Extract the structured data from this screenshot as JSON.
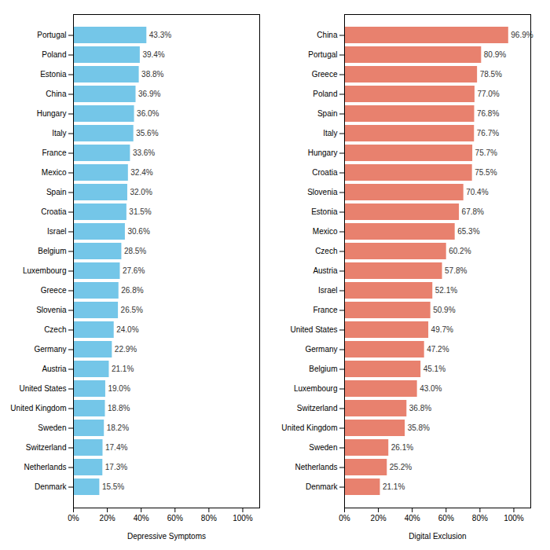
{
  "chart_data": [
    {
      "type": "bar",
      "orientation": "horizontal",
      "xlabel": "Depressive Symptoms",
      "categories": [
        "Portugal",
        "Poland",
        "Estonia",
        "China",
        "Hungary",
        "Italy",
        "France",
        "Mexico",
        "Spain",
        "Croatia",
        "Israel",
        "Belgium",
        "Luxembourg",
        "Greece",
        "Slovenia",
        "Czech",
        "Germany",
        "Austria",
        "United States",
        "United Kingdom",
        "Sweden",
        "Switzerland",
        "Netherlands",
        "Denmark"
      ],
      "values": [
        43.3,
        39.4,
        38.8,
        36.9,
        36.0,
        35.6,
        33.6,
        32.4,
        32.0,
        31.5,
        30.6,
        28.5,
        27.6,
        26.8,
        26.5,
        24.0,
        22.9,
        21.1,
        19.0,
        18.8,
        18.2,
        17.4,
        17.3,
        15.5
      ],
      "value_labels": [
        "43.3%",
        "39.4%",
        "38.8%",
        "36.9%",
        "36.0%",
        "35.6%",
        "33.6%",
        "32.4%",
        "32.0%",
        "31.5%",
        "30.6%",
        "28.5%",
        "27.6%",
        "26.8%",
        "26.5%",
        "24.0%",
        "22.9%",
        "21.1%",
        "19.0%",
        "18.8%",
        "18.2%",
        "17.4%",
        "17.3%",
        "15.5%"
      ],
      "color": "#74c6e8",
      "xlim": [
        0,
        110
      ],
      "xticks": [
        {
          "value": 0,
          "label": "0%"
        },
        {
          "value": 20,
          "label": "20%"
        },
        {
          "value": 40,
          "label": "40%"
        },
        {
          "value": 60,
          "label": "60%"
        },
        {
          "value": 80,
          "label": "80%"
        },
        {
          "value": 100,
          "label": "100%"
        }
      ],
      "data_labels": true,
      "grid": false
    },
    {
      "type": "bar",
      "orientation": "horizontal",
      "xlabel": "Digital Exclusion",
      "categories": [
        "China",
        "Portugal",
        "Greece",
        "Poland",
        "Spain",
        "Italy",
        "Hungary",
        "Croatia",
        "Slovenia",
        "Estonia",
        "Mexico",
        "Czech",
        "Austria",
        "Israel",
        "France",
        "United States",
        "Germany",
        "Belgium",
        "Luxembourg",
        "Switzerland",
        "United Kingdom",
        "Sweden",
        "Netherlands",
        "Denmark"
      ],
      "values": [
        96.9,
        80.9,
        78.5,
        77.0,
        76.8,
        76.7,
        75.7,
        75.5,
        70.4,
        67.8,
        65.3,
        60.2,
        57.8,
        52.1,
        50.9,
        49.7,
        47.2,
        45.1,
        43.0,
        36.8,
        35.8,
        26.1,
        25.2,
        21.1
      ],
      "value_labels": [
        "96.9%",
        "80.9%",
        "78.5%",
        "77.0%",
        "76.8%",
        "76.7%",
        "75.7%",
        "75.5%",
        "70.4%",
        "67.8%",
        "65.3%",
        "60.2%",
        "57.8%",
        "52.1%",
        "50.9%",
        "49.7%",
        "47.2%",
        "45.1%",
        "43.0%",
        "36.8%",
        "35.8%",
        "26.1%",
        "25.2%",
        "21.1%"
      ],
      "color": "#e8816e",
      "xlim": [
        0,
        110
      ],
      "xticks": [
        {
          "value": 0,
          "label": "0%"
        },
        {
          "value": 20,
          "label": "20%"
        },
        {
          "value": 40,
          "label": "40%"
        },
        {
          "value": 60,
          "label": "60%"
        },
        {
          "value": 80,
          "label": "80%"
        },
        {
          "value": 100,
          "label": "100%"
        }
      ],
      "data_labels": true,
      "grid": false
    }
  ]
}
